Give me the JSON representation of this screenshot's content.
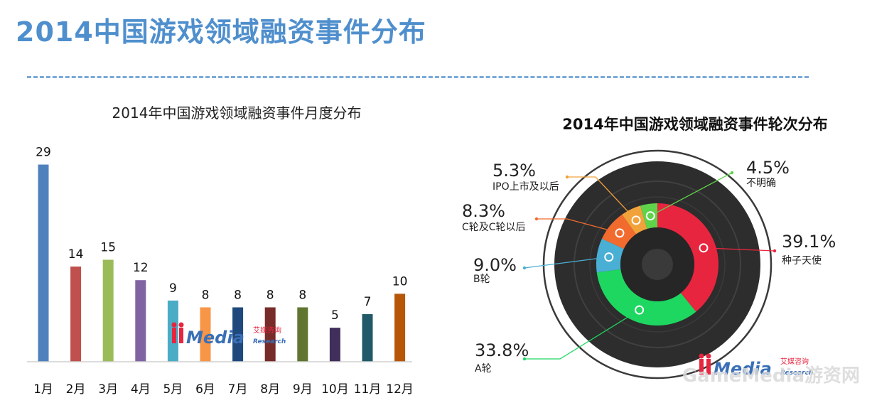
{
  "page": {
    "title": "2014中国游戏领域融资事件分布"
  },
  "chart_data": [
    {
      "type": "bar",
      "title": "2014年中国游戏领域融资事件月度分布",
      "categories": [
        "1月",
        "2月",
        "3月",
        "4月",
        "5月",
        "6月",
        "7月",
        "8月",
        "9月",
        "10月",
        "11月",
        "12月"
      ],
      "values": [
        29,
        14,
        15,
        12,
        9,
        8,
        8,
        8,
        8,
        5,
        7,
        10
      ],
      "colors": [
        "#4f81bd",
        "#c0504d",
        "#9bbb59",
        "#8064a2",
        "#4bacc6",
        "#f79646",
        "#1f497d",
        "#772c2a",
        "#5f7530",
        "#3f2f5a",
        "#215968",
        "#b65708"
      ],
      "ylim": [
        0,
        30
      ],
      "grid": false,
      "legend": "none"
    },
    {
      "type": "pie",
      "title": "2014年中国游戏领域融资事件轮次分布",
      "slices": [
        {
          "label": "种子天使",
          "value": 39.1,
          "display": "39.1%",
          "color": "#e8253f"
        },
        {
          "label": "A轮",
          "value": 33.8,
          "display": "33.8%",
          "color": "#1ed760"
        },
        {
          "label": "B轮",
          "value": 9.0,
          "display": "9.0%",
          "color": "#4aafd4"
        },
        {
          "label": "C轮及C轮以后",
          "value": 8.3,
          "display": "8.3%",
          "color": "#f26b2e"
        },
        {
          "label": "IPO上市及以后",
          "value": 5.3,
          "display": "5.3%",
          "color": "#f2a23a"
        },
        {
          "label": "不明确",
          "value": 4.5,
          "display": "4.5%",
          "color": "#5fd44a"
        }
      ],
      "legend": "callouts"
    }
  ],
  "watermark": {
    "brand": "Media",
    "cn": "艾媒咨询",
    "en": "Research",
    "site": "GameMedia游资网"
  }
}
